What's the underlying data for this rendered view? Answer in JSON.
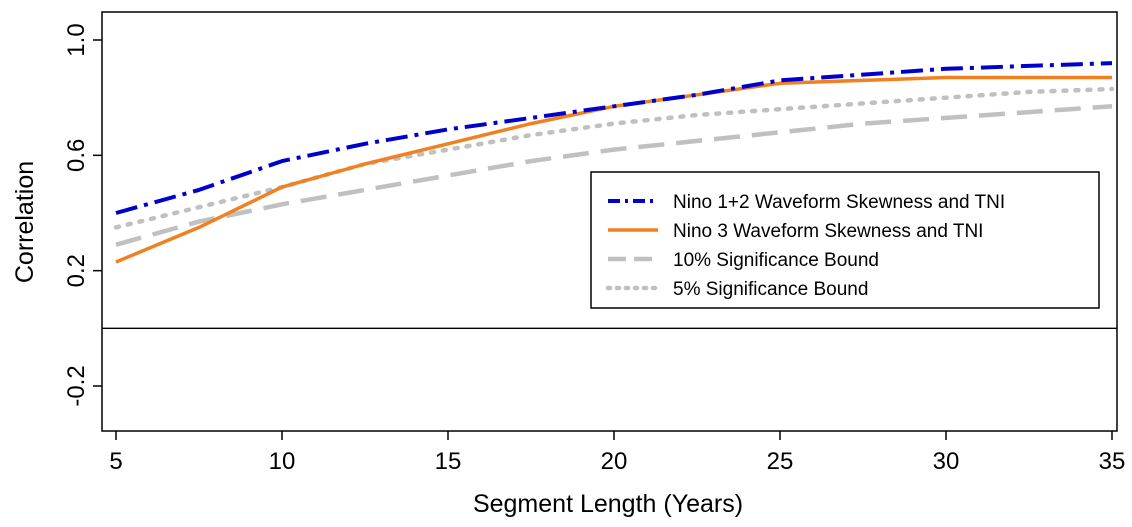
{
  "chart_data": {
    "type": "line",
    "title": "",
    "xlabel": "Segment Length (Years)",
    "ylabel": "Correlation",
    "xlim": [
      5,
      35
    ],
    "ylim": [
      -0.2,
      1.0
    ],
    "x_ticks": [
      5,
      10,
      15,
      20,
      25,
      30,
      35
    ],
    "y_ticks": [
      -0.2,
      0.2,
      0.6,
      1.0
    ],
    "y_tick_labels": [
      "-0.2",
      "0.2",
      "0.6",
      "1.0"
    ],
    "reference_line_y": 0.0,
    "grid": false,
    "legend_position": "right",
    "series": [
      {
        "name": "Nino 1+2 Waveform Skewness and TNI",
        "color": "#0000cc",
        "style": "dashdot",
        "x": [
          5,
          7.5,
          10,
          12.5,
          15,
          17.5,
          20,
          22.5,
          25,
          27.5,
          30,
          32.5,
          35
        ],
        "y": [
          0.4,
          0.48,
          0.58,
          0.64,
          0.69,
          0.73,
          0.77,
          0.81,
          0.86,
          0.88,
          0.9,
          0.91,
          0.92
        ]
      },
      {
        "name": "Nino 3 Waveform Skewness and TNI",
        "color": "#f08020",
        "style": "solid",
        "x": [
          5,
          7.5,
          10,
          12.5,
          15,
          17.5,
          20,
          22.5,
          25,
          27.5,
          30,
          32.5,
          35
        ],
        "y": [
          0.23,
          0.35,
          0.49,
          0.57,
          0.64,
          0.71,
          0.77,
          0.81,
          0.85,
          0.86,
          0.87,
          0.87,
          0.87
        ]
      },
      {
        "name": "10% Significance Bound",
        "color": "#c0c0c0",
        "style": "dashed",
        "x": [
          5,
          7.5,
          10,
          12.5,
          15,
          17.5,
          20,
          22.5,
          25,
          27.5,
          30,
          32.5,
          35
        ],
        "y": [
          0.29,
          0.37,
          0.43,
          0.48,
          0.53,
          0.58,
          0.62,
          0.65,
          0.68,
          0.71,
          0.73,
          0.75,
          0.77
        ]
      },
      {
        "name": "5% Significance Bound",
        "color": "#c0c0c0",
        "style": "dotted",
        "x": [
          5,
          7.5,
          10,
          12.5,
          15,
          17.5,
          20,
          22.5,
          25,
          27.5,
          30,
          32.5,
          35
        ],
        "y": [
          0.35,
          0.42,
          0.49,
          0.57,
          0.62,
          0.67,
          0.71,
          0.74,
          0.76,
          0.78,
          0.8,
          0.82,
          0.83
        ]
      }
    ]
  }
}
